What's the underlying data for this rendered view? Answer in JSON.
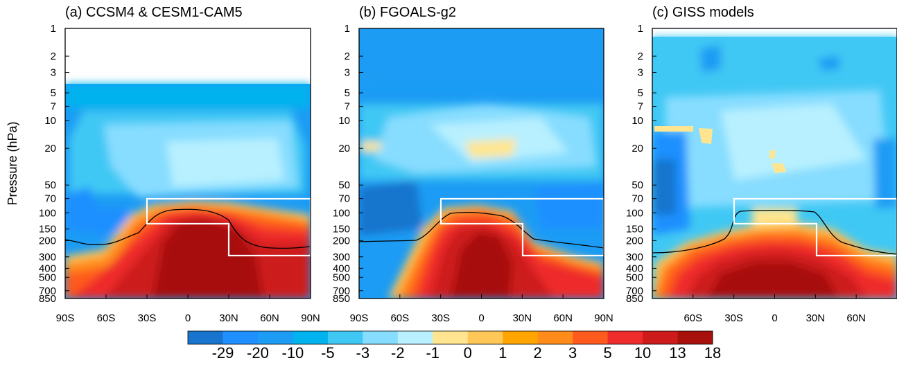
{
  "chart_data": {
    "type": "heatmap",
    "ylabel": "Pressure (hPa)",
    "yscale": "log",
    "ylim": [
      850,
      1
    ],
    "pressure_ticks": [
      "1",
      "2",
      "3",
      "5",
      "7",
      "10",
      "20",
      "50",
      "70",
      "100",
      "150",
      "200",
      "300",
      "400",
      "500",
      "700",
      "850"
    ],
    "colorbar": {
      "labels": [
        "-29",
        "-20",
        "-10",
        "-5",
        "-3",
        "-2",
        "-1",
        "0",
        "1",
        "2",
        "3",
        "5",
        "10",
        "13",
        "18"
      ],
      "colors": [
        "#1874cd",
        "#1e90ff",
        "#1c9cf4",
        "#00b2ee",
        "#40c8f4",
        "#87ddff",
        "#b8f0ff",
        "#ffe58f",
        "#ffc658",
        "#ffa500",
        "#ff8c1a",
        "#ff5a1e",
        "#ee2c2c",
        "#cd1b1b",
        "#a8100c"
      ]
    },
    "panels": [
      {
        "title": "(a) CCSM4 & CESM1-CAM5",
        "xticks": [
          "90S",
          "60S",
          "30S",
          "0",
          "30N",
          "60N",
          "90N"
        ],
        "xlim": [
          -90,
          90
        ],
        "model_top_hPa": 4
      },
      {
        "title": "(b) FGOALS-g2",
        "xticks": [
          "90S",
          "60S",
          "30S",
          "0",
          "30N",
          "60N",
          "90N"
        ],
        "xlim": [
          -90,
          90
        ],
        "model_top_hPa": 1
      },
      {
        "title": "(c) GISS models",
        "xticks": [
          "60S",
          "30S",
          "0",
          "30N",
          "60N"
        ],
        "xlim": [
          -90,
          90
        ],
        "model_top_hPa": 1.2
      }
    ]
  },
  "colors": {
    "tropopause_line": "#000000",
    "box_outline": "#ffffff"
  }
}
